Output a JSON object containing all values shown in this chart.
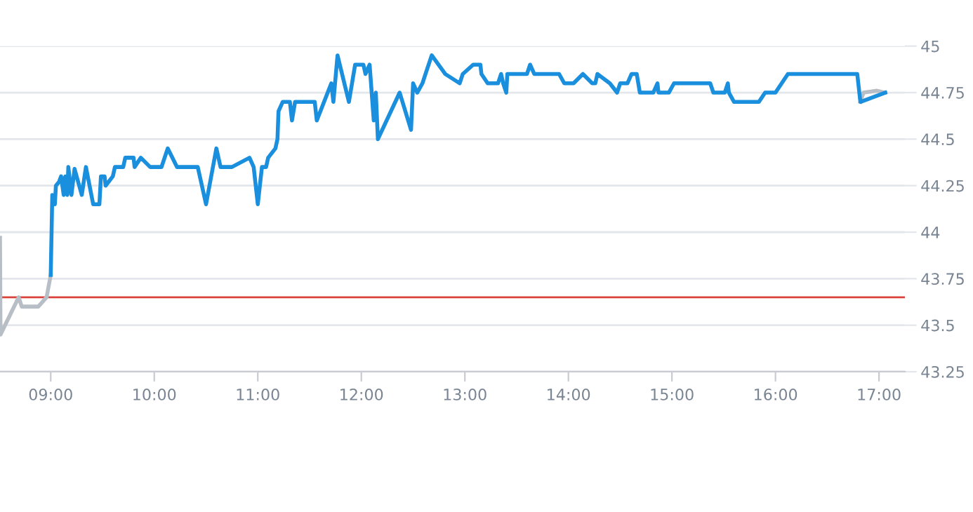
{
  "chart_data": {
    "type": "line",
    "series": [
      {
        "color": "#b8bec6",
        "x": [
          8.51,
          8.515,
          8.69,
          8.72,
          8.88,
          8.96,
          9.0,
          null,
          16.82,
          16.85,
          16.98,
          17.06
        ],
        "values": [
          43.97,
          43.45,
          43.65,
          43.6,
          43.6,
          43.65,
          43.77,
          null,
          44.7,
          44.75,
          44.76,
          44.75
        ]
      },
      {
        "color": "#1a8fdd",
        "x": [
          9.0,
          9.015,
          9.04,
          9.05,
          9.08,
          9.1,
          9.125,
          9.14,
          9.16,
          9.17,
          9.2,
          9.23,
          9.3,
          9.34,
          9.41,
          9.47,
          9.485,
          9.52,
          9.53,
          9.6,
          9.62,
          9.7,
          9.72,
          9.8,
          9.81,
          9.87,
          9.96,
          10.07,
          10.13,
          10.22,
          10.42,
          10.5,
          10.6,
          10.64,
          10.75,
          10.92,
          10.96,
          11.0,
          11.04,
          11.08,
          11.1,
          11.17,
          11.19,
          11.2,
          11.24,
          11.31,
          11.33,
          11.36,
          11.55,
          11.57,
          11.71,
          11.73,
          11.77,
          11.88,
          11.94,
          12.02,
          12.04,
          12.08,
          12.12,
          12.14,
          12.16,
          12.37,
          12.48,
          12.5,
          12.54,
          12.59,
          12.62,
          12.68,
          12.81,
          12.95,
          12.98,
          13.08,
          13.15,
          13.16,
          13.22,
          13.32,
          13.35,
          13.37,
          13.4,
          13.41,
          13.6,
          13.63,
          13.67,
          13.91,
          13.96,
          14.05,
          14.14,
          14.23,
          14.26,
          14.28,
          14.4,
          14.47,
          14.5,
          14.57,
          14.61,
          14.66,
          14.69,
          14.82,
          14.86,
          14.87,
          14.97,
          15.02,
          15.37,
          15.4,
          15.51,
          15.54,
          15.55,
          15.6,
          15.84,
          15.9,
          16.0,
          16.12,
          16.79,
          16.82,
          17.06
        ],
        "values": [
          43.77,
          44.2,
          44.15,
          44.25,
          44.27,
          44.3,
          44.2,
          44.3,
          44.2,
          44.35,
          44.2,
          44.34,
          44.2,
          44.35,
          44.15,
          44.15,
          44.3,
          44.3,
          44.25,
          44.3,
          44.35,
          44.35,
          44.4,
          44.4,
          44.35,
          44.4,
          44.35,
          44.35,
          44.45,
          44.35,
          44.35,
          44.15,
          44.45,
          44.35,
          44.35,
          44.4,
          44.35,
          44.15,
          44.35,
          44.35,
          44.4,
          44.45,
          44.5,
          44.65,
          44.7,
          44.7,
          44.6,
          44.7,
          44.7,
          44.6,
          44.8,
          44.7,
          44.95,
          44.7,
          44.9,
          44.9,
          44.85,
          44.9,
          44.6,
          44.75,
          44.5,
          44.75,
          44.55,
          44.8,
          44.75,
          44.8,
          44.85,
          44.95,
          44.85,
          44.8,
          44.85,
          44.9,
          44.9,
          44.85,
          44.8,
          44.8,
          44.85,
          44.8,
          44.75,
          44.85,
          44.85,
          44.9,
          44.85,
          44.85,
          44.8,
          44.8,
          44.85,
          44.8,
          44.8,
          44.85,
          44.8,
          44.75,
          44.8,
          44.8,
          44.85,
          44.85,
          44.75,
          44.75,
          44.8,
          44.75,
          44.75,
          44.8,
          44.8,
          44.75,
          44.75,
          44.8,
          44.75,
          44.7,
          44.7,
          44.75,
          44.75,
          44.85,
          44.85,
          44.7,
          44.75
        ]
      }
    ],
    "xlim": [
      8.51,
      17.25
    ],
    "xticks": [
      {
        "value": 9,
        "label": "09:00"
      },
      {
        "value": 10,
        "label": "10:00"
      },
      {
        "value": 11,
        "label": "11:00"
      },
      {
        "value": 12,
        "label": "12:00"
      },
      {
        "value": 13,
        "label": "13:00"
      },
      {
        "value": 14,
        "label": "14:00"
      },
      {
        "value": 15,
        "label": "15:00"
      },
      {
        "value": 16,
        "label": "16:00"
      },
      {
        "value": 17,
        "label": "17:00"
      }
    ],
    "ylim": [
      43.25,
      45
    ],
    "yticks": [
      43.25,
      43.5,
      43.75,
      44,
      44.25,
      44.5,
      44.75,
      45
    ],
    "ref_lines": [
      {
        "axis": "y",
        "value": 43.65,
        "color": "#d9433b"
      }
    ],
    "grid": "y",
    "marker": "none",
    "line_style": "solid",
    "legend": false
  }
}
